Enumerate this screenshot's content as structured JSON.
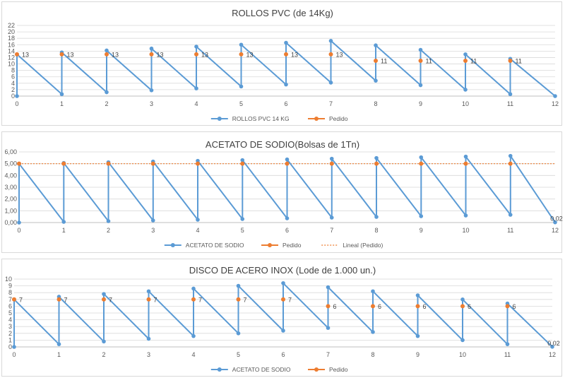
{
  "colors": {
    "stock": "#5b9bd5",
    "order": "#ed7d31",
    "grid": "#d9d9d9",
    "axis": "#bfbfbf"
  },
  "chart_data": [
    {
      "type": "line",
      "title": "ROLLOS PVC (de 14Kg)",
      "xlim": [
        0,
        12
      ],
      "ylim": [
        0,
        22
      ],
      "y_ticks": [
        "0",
        "2",
        "4",
        "6",
        "8",
        "10",
        "12",
        "14",
        "16",
        "18",
        "20",
        "22"
      ],
      "x_ticks": [
        "0",
        "1",
        "2",
        "3",
        "4",
        "5",
        "6",
        "7",
        "8",
        "9",
        "10",
        "11",
        "12"
      ],
      "series": [
        {
          "name": "ROLLOS PVC 14 KG",
          "kind": "sawtooth",
          "points": [
            [
              0,
              0
            ],
            [
              0,
              13
            ],
            [
              1,
              0.6
            ],
            [
              1,
              13.6
            ],
            [
              2,
              1.2
            ],
            [
              2,
              14.2
            ],
            [
              3,
              1.8
            ],
            [
              3,
              14.8
            ],
            [
              4,
              2.4
            ],
            [
              4,
              15.4
            ],
            [
              5,
              3
            ],
            [
              5,
              16
            ],
            [
              6,
              3.6
            ],
            [
              6,
              16.6
            ],
            [
              7,
              4.2
            ],
            [
              7,
              17.2
            ],
            [
              8,
              4.8
            ],
            [
              8,
              15.8
            ],
            [
              9,
              3.4
            ],
            [
              9,
              14.4
            ],
            [
              10,
              2
            ],
            [
              10,
              13
            ],
            [
              11,
              0.6
            ],
            [
              11,
              11.6
            ],
            [
              12,
              0
            ]
          ]
        },
        {
          "name": "Pedido",
          "kind": "markers",
          "points": [
            [
              0,
              13
            ],
            [
              1,
              13
            ],
            [
              2,
              13
            ],
            [
              3,
              13
            ],
            [
              4,
              13
            ],
            [
              5,
              13
            ],
            [
              6,
              13
            ],
            [
              7,
              13
            ],
            [
              8,
              11
            ],
            [
              9,
              11
            ],
            [
              10,
              11
            ],
            [
              11,
              11
            ]
          ],
          "labels": [
            "13",
            "13",
            "13",
            "13",
            "13",
            "13",
            "13",
            "13",
            "11",
            "11",
            "11",
            "11"
          ]
        }
      ],
      "legend": {
        "position": "bottom",
        "entries": [
          "ROLLOS PVC 14 KG",
          "Pedido"
        ]
      }
    },
    {
      "type": "line",
      "title": "ACETATO DE SODIO(Bolsas de 1Tn)",
      "xlim": [
        0,
        12
      ],
      "ylim": [
        0,
        6
      ],
      "y_ticks": [
        "0,00",
        "1,00",
        "2,00",
        "3,00",
        "4,00",
        "5,00",
        "6,00"
      ],
      "x_ticks": [
        "0",
        "1",
        "2",
        "3",
        "4",
        "5",
        "6",
        "7",
        "8",
        "9",
        "10",
        "11",
        "12"
      ],
      "series": [
        {
          "name": "ACETATO DE SODIO",
          "kind": "sawtooth",
          "points": [
            [
              0,
              0
            ],
            [
              0,
              5
            ],
            [
              1,
              0.06
            ],
            [
              1,
              5.06
            ],
            [
              2,
              0.12
            ],
            [
              2,
              5.12
            ],
            [
              3,
              0.18
            ],
            [
              3,
              5.18
            ],
            [
              4,
              0.24
            ],
            [
              4,
              5.24
            ],
            [
              5,
              0.3
            ],
            [
              5,
              5.3
            ],
            [
              6,
              0.36
            ],
            [
              6,
              5.36
            ],
            [
              7,
              0.42
            ],
            [
              7,
              5.42
            ],
            [
              8,
              0.48
            ],
            [
              8,
              5.48
            ],
            [
              9,
              0.54
            ],
            [
              9,
              5.54
            ],
            [
              10,
              0.6
            ],
            [
              10,
              5.6
            ],
            [
              11,
              0.66
            ],
            [
              11,
              5.66
            ],
            [
              12,
              0.02
            ]
          ]
        },
        {
          "name": "Pedido",
          "kind": "markers",
          "points": [
            [
              0,
              5
            ],
            [
              1,
              5
            ],
            [
              2,
              5
            ],
            [
              3,
              5
            ],
            [
              4,
              5
            ],
            [
              5,
              5
            ],
            [
              6,
              5
            ],
            [
              7,
              5
            ],
            [
              8,
              5
            ],
            [
              9,
              5
            ],
            [
              10,
              5
            ],
            [
              11,
              5
            ]
          ],
          "labels": []
        },
        {
          "name": "Lineal (Pedido)",
          "kind": "trend",
          "points": [
            [
              0,
              5
            ],
            [
              12,
              5
            ]
          ]
        }
      ],
      "end_label": "0,02",
      "legend": {
        "position": "bottom",
        "entries": [
          "ACETATO DE SODIO",
          "Pedido",
          "Lineal (Pedido)"
        ]
      }
    },
    {
      "type": "line",
      "title": "DISCO DE ACERO INOX (Lode de 1.000 un.)",
      "xlim": [
        0,
        12
      ],
      "ylim": [
        0,
        10
      ],
      "y_ticks": [
        "0",
        "1",
        "2",
        "3",
        "4",
        "5",
        "6",
        "7",
        "8",
        "9",
        "10"
      ],
      "x_ticks": [
        "0",
        "1",
        "2",
        "3",
        "4",
        "5",
        "6",
        "7",
        "8",
        "9",
        "10",
        "11",
        "12"
      ],
      "series": [
        {
          "name": "ACETATO DE SODIO",
          "kind": "sawtooth",
          "points": [
            [
              0,
              0
            ],
            [
              0,
              7
            ],
            [
              1,
              0.4
            ],
            [
              1,
              7.4
            ],
            [
              2,
              0.8
            ],
            [
              2,
              7.8
            ],
            [
              3,
              1.2
            ],
            [
              3,
              8.2
            ],
            [
              4,
              1.6
            ],
            [
              4,
              8.6
            ],
            [
              5,
              2
            ],
            [
              5,
              9
            ],
            [
              6,
              2.4
            ],
            [
              6,
              9.4
            ],
            [
              7,
              2.8
            ],
            [
              7,
              8.8
            ],
            [
              8,
              2.2
            ],
            [
              8,
              8.2
            ],
            [
              9,
              1.6
            ],
            [
              9,
              7.6
            ],
            [
              10,
              1
            ],
            [
              10,
              7
            ],
            [
              11,
              0.4
            ],
            [
              11,
              6.4
            ],
            [
              12,
              0.02
            ]
          ]
        },
        {
          "name": "Pedido",
          "kind": "markers",
          "points": [
            [
              0,
              7
            ],
            [
              1,
              7
            ],
            [
              2,
              7
            ],
            [
              3,
              7
            ],
            [
              4,
              7
            ],
            [
              5,
              7
            ],
            [
              6,
              7
            ],
            [
              7,
              6
            ],
            [
              8,
              6
            ],
            [
              9,
              6
            ],
            [
              10,
              6
            ],
            [
              11,
              6
            ]
          ],
          "labels": [
            "7",
            "7",
            "7",
            "7",
            "7",
            "7",
            "7",
            "6",
            "6",
            "6",
            "6",
            "6"
          ]
        }
      ],
      "end_label": "0,02",
      "legend": {
        "position": "bottom",
        "entries": [
          "ACETATO DE SODIO",
          "Pedido"
        ]
      }
    }
  ]
}
